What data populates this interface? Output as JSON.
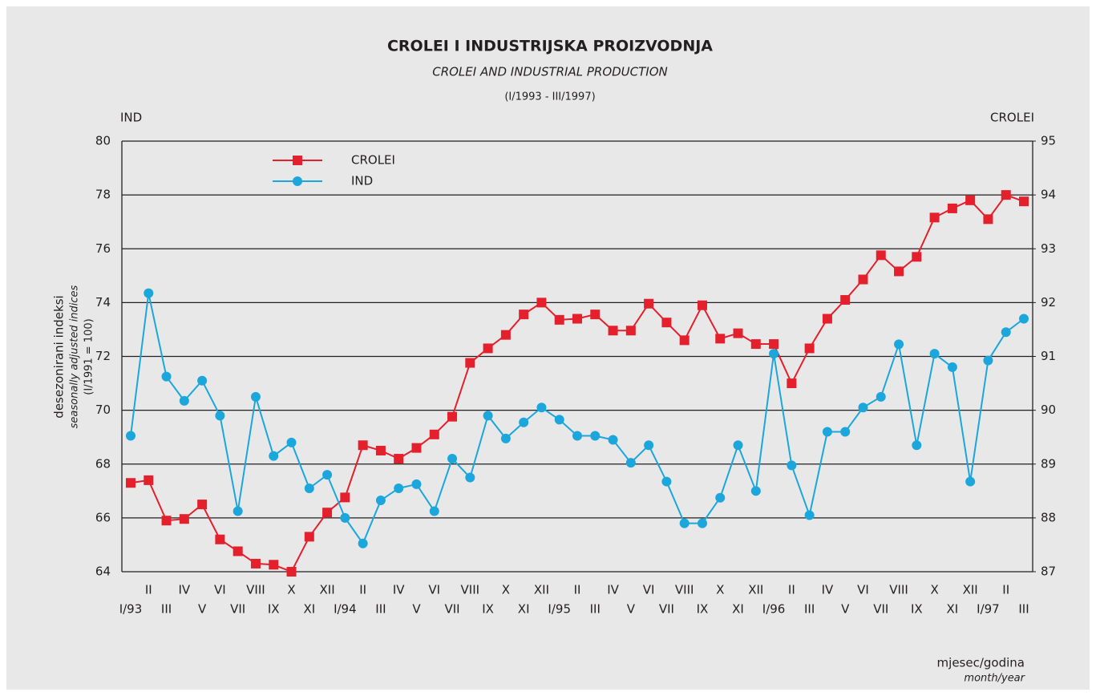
{
  "chart_data": {
    "type": "line",
    "title": "CROLEI I INDUSTRIJSKA PROIZVODNJA",
    "subtitle": "CROLEI AND INDUSTRIAL PRODUCTION",
    "period": "(I/1993 - III/1997)",
    "y_axis_name": "IND",
    "y2_axis_name": "CROLEI",
    "ylabel": "desezonirani indeksi",
    "ylabel_en": "seasonally adjusted indices",
    "ylabel_base": "(I/1991 = 100)",
    "xlabel": "mjesec/godina",
    "xlabel_en": "month/year",
    "categories": [
      "I/93",
      "II",
      "III",
      "IV",
      "V",
      "VI",
      "VII",
      "VIII",
      "IX",
      "X",
      "XI",
      "XII",
      "I/94",
      "II",
      "III",
      "IV",
      "V",
      "VI",
      "VII",
      "VIII",
      "IX",
      "X",
      "XI",
      "XII",
      "I/95",
      "II",
      "III",
      "IV",
      "V",
      "VI",
      "VII",
      "VIII",
      "IX",
      "X",
      "XI",
      "XII",
      "I/96",
      "II",
      "III",
      "IV",
      "V",
      "VI",
      "VII",
      "VIII",
      "IX",
      "X",
      "XI",
      "XII",
      "I/97",
      "II",
      "III"
    ],
    "ylim": [
      64,
      80
    ],
    "yticks": [
      64,
      66,
      68,
      70,
      72,
      74,
      76,
      78,
      80
    ],
    "y2lim": [
      87,
      95
    ],
    "y2ticks": [
      87,
      88,
      89,
      90,
      91,
      92,
      93,
      94,
      95
    ],
    "grid": true,
    "series": [
      {
        "name": "CROLEI",
        "color": "#e3202b",
        "marker": "square",
        "axis": "y2",
        "values": [
          88.65,
          88.7,
          87.95,
          87.98,
          88.25,
          87.6,
          87.38,
          87.15,
          87.13,
          87.0,
          87.65,
          88.1,
          88.38,
          89.35,
          89.25,
          89.1,
          89.3,
          89.55,
          89.88,
          90.88,
          91.15,
          91.4,
          91.78,
          92.0,
          91.68,
          91.7,
          91.78,
          91.48,
          91.48,
          91.98,
          91.63,
          91.3,
          91.95,
          91.33,
          91.43,
          91.23,
          91.23,
          90.5,
          91.15,
          91.7,
          92.05,
          92.43,
          92.88,
          92.58,
          92.85,
          93.58,
          93.75,
          93.9,
          93.55,
          94.0,
          93.88
        ]
      },
      {
        "name": "IND",
        "color": "#1ba6dc",
        "marker": "circle",
        "values": [
          69.05,
          74.35,
          71.25,
          70.35,
          71.1,
          69.8,
          66.25,
          70.5,
          68.3,
          68.8,
          67.1,
          67.6,
          66.0,
          65.05,
          66.65,
          67.1,
          67.25,
          66.25,
          68.2,
          67.5,
          69.8,
          68.95,
          69.55,
          70.1,
          69.65,
          69.05,
          69.05,
          68.9,
          68.05,
          68.7,
          67.35,
          65.8,
          65.8,
          66.75,
          68.7,
          67.0,
          72.1,
          67.95,
          66.1,
          69.2,
          69.2,
          70.1,
          70.5,
          72.45,
          68.7,
          72.1,
          71.6,
          67.35,
          71.85,
          72.9,
          73.4
        ]
      }
    ]
  }
}
